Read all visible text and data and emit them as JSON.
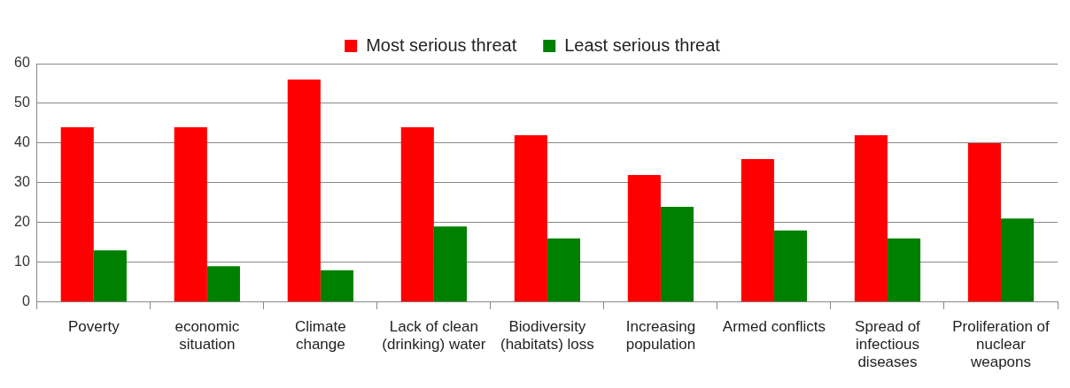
{
  "chart_data": {
    "type": "bar",
    "categories": [
      "Poverty",
      "economic situation",
      "Climate change",
      "Lack of clean (drinking) water",
      "Biodiversity (habitats) loss",
      "Increasing population",
      "Armed conflicts",
      "Spread of infectious diseases",
      "Proliferation of nuclear weapons"
    ],
    "series": [
      {
        "name": "Most serious threat",
        "color": "#ff0000",
        "values": [
          44,
          44,
          56,
          44,
          42,
          32,
          36,
          42,
          40
        ]
      },
      {
        "name": "Least serious threat",
        "color": "#008000",
        "values": [
          13,
          9,
          8,
          19,
          16,
          24,
          18,
          16,
          21
        ]
      }
    ],
    "ylim": [
      0,
      60
    ],
    "yticks": [
      0,
      10,
      20,
      30,
      40,
      50,
      60
    ],
    "grid": "y",
    "legend": "top"
  }
}
